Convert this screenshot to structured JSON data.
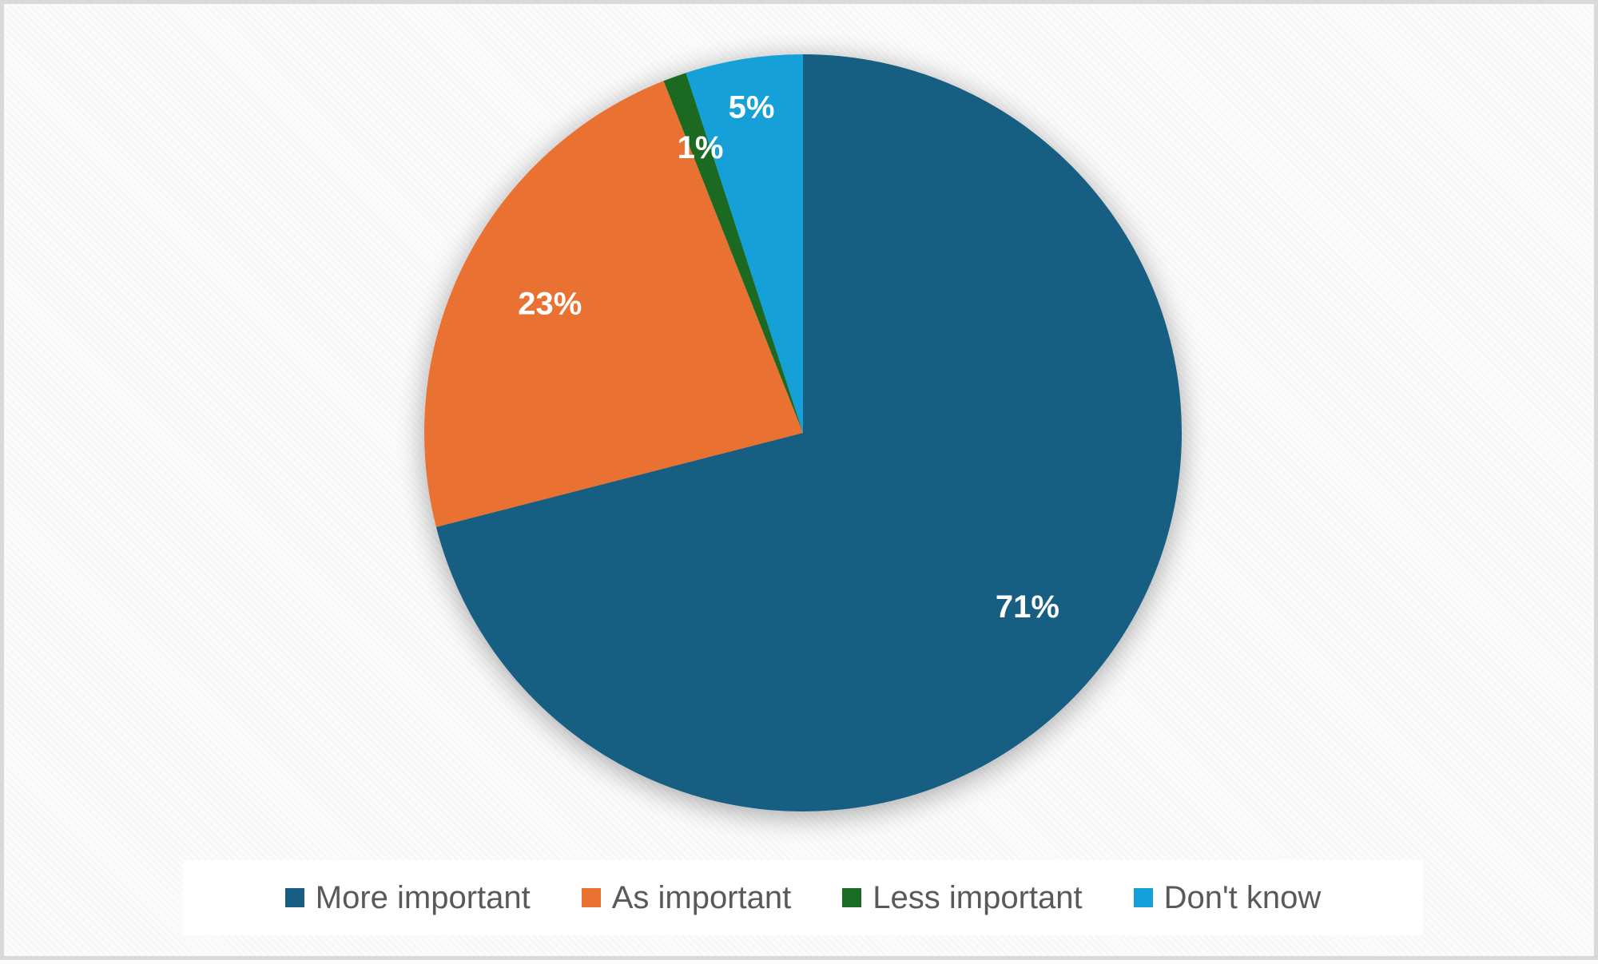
{
  "chart_data": {
    "type": "pie",
    "title": "",
    "categories": [
      "More important",
      "As important",
      "Less important",
      "Don't know"
    ],
    "values": [
      71,
      23,
      1,
      5
    ],
    "labels": [
      "71%",
      "23%",
      "1%",
      "5%"
    ],
    "colors": [
      "#185e82",
      "#e97132",
      "#1a6b24",
      "#14a0d8"
    ],
    "start_angle": "12 o'clock, clockwise from More important",
    "legend_position": "bottom"
  }
}
